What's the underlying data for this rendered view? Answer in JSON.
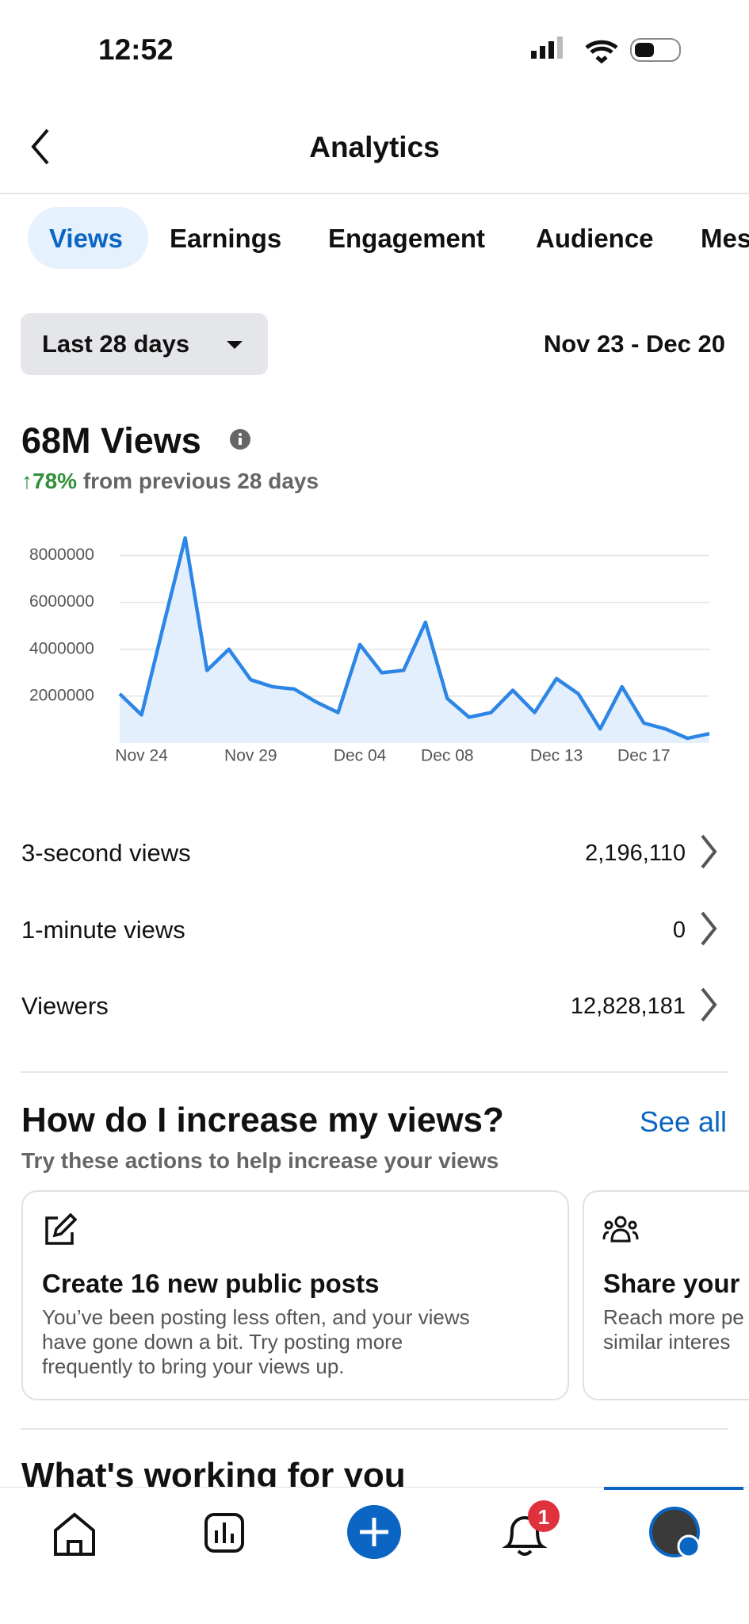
{
  "status": {
    "time": "12:52"
  },
  "header": {
    "title": "Analytics"
  },
  "tabs": [
    "Views",
    "Earnings",
    "Engagement",
    "Audience",
    "Mes"
  ],
  "filter": {
    "label": "Last 28 days",
    "range": "Nov 23 - Dec 20"
  },
  "summary": {
    "headline": "68M Views",
    "change": "↑78%",
    "change_note": "from previous 28 days"
  },
  "chart_data": {
    "type": "line",
    "color": "#2d86e5",
    "fill": "#e3effc",
    "grid": true,
    "categories": [
      null,
      "Nov 24",
      null,
      null,
      null,
      null,
      "Nov 29",
      null,
      null,
      null,
      null,
      "Dec 04",
      null,
      null,
      null,
      "Dec 08",
      null,
      null,
      null,
      null,
      "Dec 13",
      null,
      null,
      null,
      "Dec 17",
      null,
      null,
      null
    ],
    "values": [
      2100000,
      1200000,
      5000000,
      8750000,
      3100000,
      4000000,
      2700000,
      2400000,
      2300000,
      1750000,
      1300000,
      4200000,
      3000000,
      3100000,
      5150000,
      1900000,
      1100000,
      1300000,
      2250000,
      1300000,
      2750000,
      2100000,
      600000,
      2400000,
      850000,
      600000,
      200000,
      400000
    ],
    "ylim": [
      0,
      9000000
    ],
    "yticks": [
      2000000,
      4000000,
      6000000,
      8000000
    ]
  },
  "metrics": [
    {
      "label": "3-second views",
      "value": "2,196,110"
    },
    {
      "label": "1-minute views",
      "value": "0"
    },
    {
      "label": "Viewers",
      "value": "12,828,181"
    }
  ],
  "tips": {
    "title": "How do I increase my views?",
    "link": "See all",
    "subtitle": "Try these actions to help increase your views",
    "cards": [
      {
        "title": "Create 16 new public posts",
        "lines": [
          "You’ve been posting less often, and your views",
          "have gone down a bit. Try posting more",
          "frequently to bring your views up."
        ]
      },
      {
        "title": "Share your",
        "lines": [
          "Reach more pe",
          "similar interes"
        ]
      }
    ]
  },
  "next_section": {
    "title": "What's working for you"
  },
  "nav": {
    "badge": "1"
  }
}
